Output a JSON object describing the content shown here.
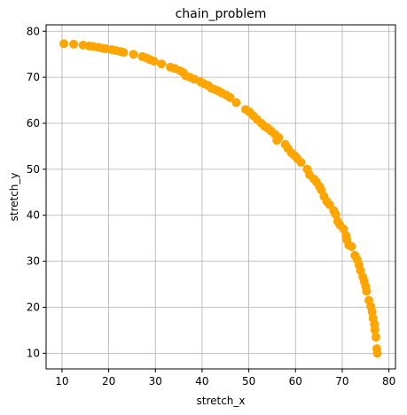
{
  "chart_data": {
    "type": "scatter",
    "title": "chain_problem",
    "xlabel": "stretch_x",
    "ylabel": "stretch_y",
    "xlim": [
      6.6,
      81.4
    ],
    "ylim": [
      6.6,
      81.4
    ],
    "xticks": [
      10,
      20,
      30,
      40,
      50,
      60,
      70,
      80
    ],
    "yticks": [
      10,
      20,
      30,
      40,
      50,
      60,
      70,
      80
    ],
    "xtick_labels": [
      "10",
      "20",
      "30",
      "40",
      "50",
      "60",
      "70",
      "80"
    ],
    "ytick_labels": [
      "10",
      "20",
      "30",
      "40",
      "50",
      "60",
      "70",
      "80"
    ],
    "grid": true,
    "marker_color": "#FFA500",
    "series": [
      {
        "points": [
          [
            10.4,
            77.3
          ],
          [
            12.5,
            77.2
          ],
          [
            14.5,
            77.0
          ],
          [
            15.8,
            76.8
          ],
          [
            16.7,
            76.7
          ],
          [
            17.8,
            76.5
          ],
          [
            18.7,
            76.3
          ],
          [
            19.4,
            76.2
          ],
          [
            20.6,
            76.0
          ],
          [
            21.6,
            75.8
          ],
          [
            22.5,
            75.6
          ],
          [
            23.2,
            75.4
          ],
          [
            25.3,
            75.0
          ],
          [
            27.2,
            74.5
          ],
          [
            28.1,
            74.2
          ],
          [
            28.9,
            73.8
          ],
          [
            29.7,
            73.5
          ],
          [
            31.3,
            72.9
          ],
          [
            33.2,
            72.2
          ],
          [
            34.2,
            71.9
          ],
          [
            35.3,
            71.4
          ],
          [
            36.0,
            71.0
          ],
          [
            36.5,
            70.3
          ],
          [
            37.4,
            70.0
          ],
          [
            38.3,
            69.6
          ],
          [
            39.7,
            69.0
          ],
          [
            40.4,
            68.6
          ],
          [
            41.3,
            68.2
          ],
          [
            42.0,
            67.6
          ],
          [
            42.8,
            67.3
          ],
          [
            43.5,
            67.0
          ],
          [
            44.2,
            66.6
          ],
          [
            45.2,
            66.1
          ],
          [
            46.0,
            65.6
          ],
          [
            47.3,
            64.5
          ],
          [
            49.3,
            63.0
          ],
          [
            50.2,
            62.4
          ],
          [
            51.0,
            61.6
          ],
          [
            51.8,
            60.8
          ],
          [
            52.7,
            60.0
          ],
          [
            53.4,
            59.3
          ],
          [
            54.1,
            58.9
          ],
          [
            54.8,
            58.3
          ],
          [
            55.6,
            57.6
          ],
          [
            56.0,
            56.3
          ],
          [
            56.4,
            56.9
          ],
          [
            57.8,
            55.4
          ],
          [
            58.4,
            54.5
          ],
          [
            59.1,
            53.6
          ],
          [
            59.8,
            53.0
          ],
          [
            60.4,
            52.3
          ],
          [
            61.2,
            51.5
          ],
          [
            62.5,
            50.0
          ],
          [
            63.0,
            48.8
          ],
          [
            63.9,
            47.9
          ],
          [
            64.5,
            47.2
          ],
          [
            65.1,
            46.3
          ],
          [
            65.5,
            45.5
          ],
          [
            66.1,
            44.1
          ],
          [
            66.7,
            43.0
          ],
          [
            67.3,
            42.3
          ],
          [
            68.2,
            41.0
          ],
          [
            68.6,
            40.2
          ],
          [
            69.0,
            38.7
          ],
          [
            69.5,
            37.9
          ],
          [
            70.3,
            37.0
          ],
          [
            70.8,
            35.6
          ],
          [
            71.0,
            34.6
          ],
          [
            71.4,
            33.5
          ],
          [
            72.0,
            33.2
          ],
          [
            72.7,
            31.3
          ],
          [
            73.2,
            30.4
          ],
          [
            73.6,
            29.2
          ],
          [
            73.9,
            28.0
          ],
          [
            74.4,
            26.6
          ],
          [
            74.7,
            25.7
          ],
          [
            75.0,
            24.6
          ],
          [
            75.2,
            23.5
          ],
          [
            75.7,
            21.5
          ],
          [
            76.1,
            20.2
          ],
          [
            76.4,
            19.0
          ],
          [
            76.6,
            17.6
          ],
          [
            76.9,
            16.3
          ],
          [
            77.0,
            15.1
          ],
          [
            77.2,
            13.5
          ],
          [
            77.4,
            11.0
          ],
          [
            77.5,
            10.0
          ]
        ]
      }
    ]
  }
}
